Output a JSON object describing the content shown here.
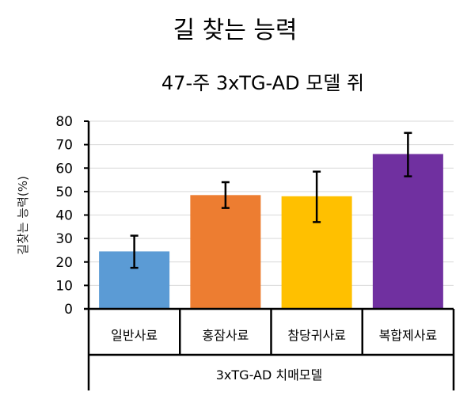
{
  "chart_data": {
    "type": "bar",
    "title": "길 찾는 능력",
    "subtitle": "47-주 3xTG-AD 모델 쥐",
    "ylabel": "길찾는 능력(%)",
    "group_label": "3xTG-AD 치매모델",
    "categories": [
      "일반사료",
      "홍잠사료",
      "참당귀사료",
      "복합제사료"
    ],
    "values": [
      24.5,
      48.5,
      48,
      66
    ],
    "error_low": [
      17.5,
      43,
      37,
      56.5
    ],
    "error_high": [
      31.2,
      54,
      58.5,
      75
    ],
    "ylim": [
      0,
      80
    ],
    "yticks": [
      "0",
      "10",
      "20",
      "30",
      "40",
      "50",
      "60",
      "70",
      "80"
    ],
    "grid": true,
    "legend": "none",
    "colors": [
      "#5b9bd5",
      "#ed7d31",
      "#ffc000",
      "#7030a0"
    ]
  }
}
